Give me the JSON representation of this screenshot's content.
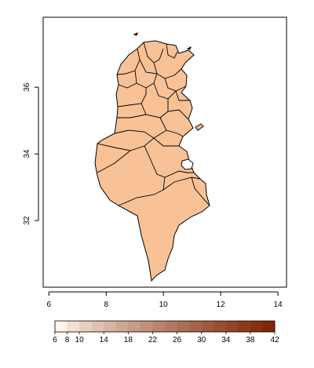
{
  "map": {
    "title": "",
    "x_axis": {
      "label": "",
      "range": [
        5.8,
        14.3
      ],
      "ticks": [
        {
          "value": 6,
          "label": "6"
        },
        {
          "value": 8,
          "label": "8"
        },
        {
          "value": 10,
          "label": "10"
        },
        {
          "value": 12,
          "label": "12"
        },
        {
          "value": 14,
          "label": "14"
        }
      ]
    },
    "y_axis": {
      "label": "",
      "range": [
        30.0,
        38.1
      ],
      "ticks": [
        {
          "value": 32,
          "label": "32"
        },
        {
          "value": 34,
          "label": "34"
        },
        {
          "value": 36,
          "label": "36"
        }
      ]
    },
    "fill_colors": {
      "north": "#f9c9a0",
      "center": "#f8c296",
      "south": "#f6b889",
      "border": "#000000"
    }
  },
  "legend": {
    "min": 6,
    "max": 42,
    "step": 2,
    "tick_labels": [
      "6",
      "8",
      "10",
      "14",
      "18",
      "22",
      "26",
      "30",
      "34",
      "38",
      "42"
    ],
    "tick_values": [
      6,
      8,
      10,
      14,
      18,
      22,
      26,
      30,
      34,
      38,
      42
    ],
    "color_low": "#fff5eb",
    "color_high": "#7f2704"
  }
}
